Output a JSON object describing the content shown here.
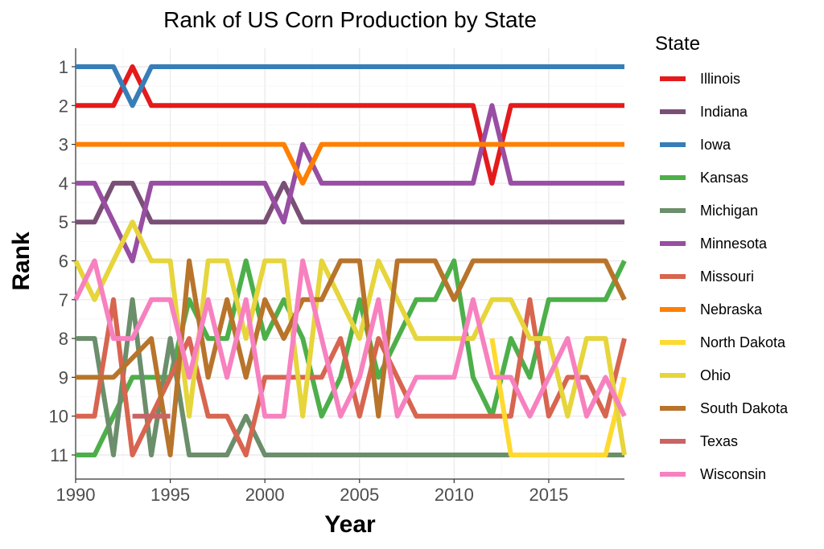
{
  "chart_data": {
    "type": "line",
    "title": "Rank of US Corn Production by State",
    "xlabel": "Year",
    "ylabel": "Rank",
    "xlim": [
      1990,
      2019
    ],
    "ylim": [
      1,
      11
    ],
    "y_reversed": true,
    "x_ticks": [
      1990,
      1995,
      2000,
      2005,
      2010,
      2015
    ],
    "y_ticks": [
      1,
      2,
      3,
      4,
      5,
      6,
      7,
      8,
      9,
      10,
      11
    ],
    "grid": true,
    "legend_title": "State",
    "legend_position": "right",
    "x": [
      1990,
      1991,
      1992,
      1993,
      1994,
      1995,
      1996,
      1997,
      1998,
      1999,
      2000,
      2001,
      2002,
      2003,
      2004,
      2005,
      2006,
      2007,
      2008,
      2009,
      2010,
      2011,
      2012,
      2013,
      2014,
      2015,
      2016,
      2017,
      2018,
      2019
    ],
    "series": [
      {
        "name": "Illinois",
        "color": "#e41a1c",
        "values": [
          2,
          2,
          2,
          1,
          2,
          2,
          2,
          2,
          2,
          2,
          2,
          2,
          2,
          2,
          2,
          2,
          2,
          2,
          2,
          2,
          2,
          2,
          4,
          2,
          2,
          2,
          2,
          2,
          2,
          2
        ]
      },
      {
        "name": "Indiana",
        "color": "#7a4f75",
        "values": [
          5,
          5,
          4,
          4,
          5,
          5,
          5,
          5,
          5,
          5,
          5,
          4,
          5,
          5,
          5,
          5,
          5,
          5,
          5,
          5,
          5,
          5,
          5,
          5,
          5,
          5,
          5,
          5,
          5,
          5
        ]
      },
      {
        "name": "Iowa",
        "color": "#377eb8",
        "values": [
          1,
          1,
          1,
          2,
          1,
          1,
          1,
          1,
          1,
          1,
          1,
          1,
          1,
          1,
          1,
          1,
          1,
          1,
          1,
          1,
          1,
          1,
          1,
          1,
          1,
          1,
          1,
          1,
          1,
          1
        ]
      },
      {
        "name": "Kansas",
        "color": "#4daf4a",
        "values": [
          11,
          11,
          10,
          9,
          9,
          9,
          7,
          8,
          8,
          6,
          8,
          7,
          8,
          10,
          9,
          7,
          9,
          8,
          7,
          7,
          6,
          9,
          10,
          8,
          9,
          7,
          7,
          7,
          7,
          6
        ]
      },
      {
        "name": "Michigan",
        "color": "#6b8e6b",
        "values": [
          8,
          8,
          11,
          7,
          11,
          8,
          11,
          11,
          11,
          10,
          11,
          11,
          11,
          11,
          11,
          11,
          11,
          11,
          11,
          11,
          11,
          11,
          11,
          11,
          11,
          11,
          11,
          11,
          11,
          11
        ]
      },
      {
        "name": "Minnesota",
        "color": "#984ea3",
        "values": [
          4,
          4,
          5,
          6,
          4,
          4,
          4,
          4,
          4,
          4,
          4,
          5,
          3,
          4,
          4,
          4,
          4,
          4,
          4,
          4,
          4,
          4,
          2,
          4,
          4,
          4,
          4,
          4,
          4,
          4
        ]
      },
      {
        "name": "Missouri",
        "color": "#d8654f",
        "values": [
          10,
          10,
          7,
          11,
          10,
          9,
          8,
          10,
          10,
          11,
          9,
          9,
          9,
          9,
          8,
          10,
          8,
          9,
          10,
          10,
          10,
          10,
          10,
          10,
          7,
          10,
          9,
          9,
          10,
          8
        ]
      },
      {
        "name": "Nebraska",
        "color": "#ff7f00",
        "values": [
          3,
          3,
          3,
          3,
          3,
          3,
          3,
          3,
          3,
          3,
          3,
          3,
          4,
          3,
          3,
          3,
          3,
          3,
          3,
          3,
          3,
          3,
          3,
          3,
          3,
          3,
          3,
          3,
          3,
          3
        ]
      },
      {
        "name": "North Dakota",
        "color": "#ffd92f",
        "values": [
          null,
          null,
          null,
          null,
          null,
          null,
          null,
          null,
          null,
          null,
          null,
          null,
          null,
          null,
          null,
          null,
          null,
          null,
          null,
          null,
          null,
          null,
          8,
          11,
          11,
          11,
          11,
          11,
          11,
          9
        ]
      },
      {
        "name": "Ohio",
        "color": "#e6d53b",
        "values": [
          6,
          7,
          6,
          5,
          6,
          6,
          10,
          6,
          6,
          8,
          6,
          6,
          10,
          6,
          7,
          8,
          6,
          7,
          8,
          8,
          8,
          8,
          7,
          7,
          8,
          8,
          10,
          8,
          8,
          11
        ]
      },
      {
        "name": "South Dakota",
        "color": "#b8742b",
        "values": [
          9,
          9,
          9,
          8.5,
          8,
          11,
          6,
          9,
          7,
          9,
          7,
          8,
          7,
          7,
          6,
          6,
          10,
          6,
          6,
          6,
          7,
          6,
          6,
          6,
          6,
          6,
          6,
          6,
          6,
          7
        ]
      },
      {
        "name": "Texas",
        "color": "#c96464",
        "values": [
          null,
          null,
          null,
          10,
          10,
          10,
          null,
          null,
          null,
          null,
          null,
          null,
          null,
          null,
          null,
          null,
          null,
          11,
          null,
          null,
          null,
          null,
          null,
          null,
          null,
          null,
          null,
          null,
          null,
          null
        ]
      },
      {
        "name": "Wisconsin",
        "color": "#f781bf",
        "values": [
          7,
          6,
          8,
          8,
          7,
          7,
          9,
          7,
          9,
          7,
          10,
          10,
          6,
          8,
          10,
          9,
          7,
          10,
          9,
          9,
          9,
          7,
          9,
          9,
          10,
          9,
          8,
          10,
          9,
          10
        ]
      }
    ]
  }
}
